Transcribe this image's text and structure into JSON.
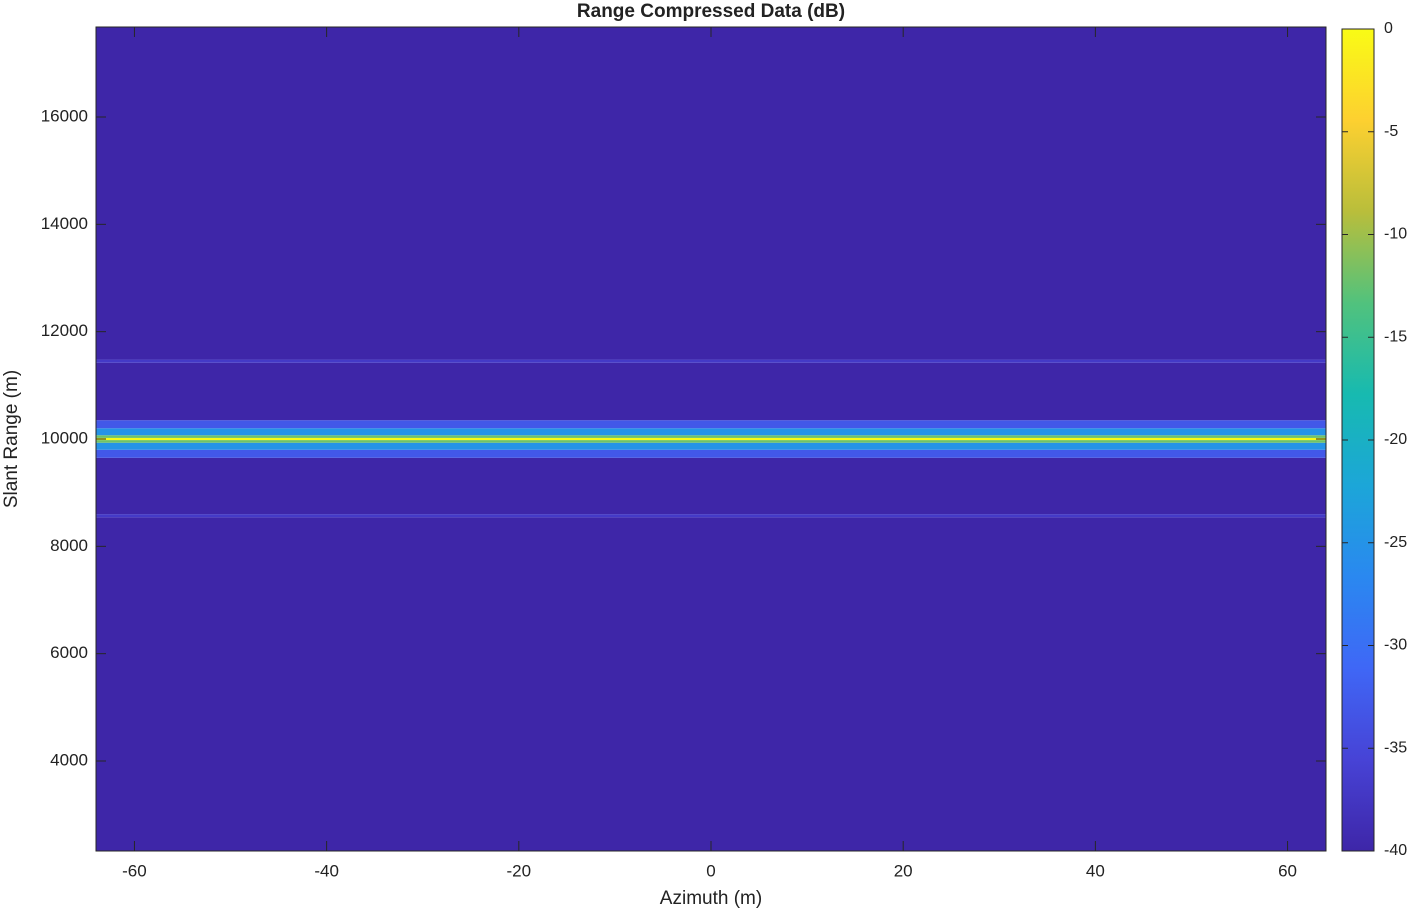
{
  "chart_data": {
    "type": "heatmap",
    "title": "Range Compressed Data (dB)",
    "x_label": "Azimuth (m)",
    "y_label": "Slant Range (m)",
    "xlim": [
      -64,
      64
    ],
    "xticks": [
      -60,
      -40,
      -20,
      0,
      20,
      40,
      60
    ],
    "ylim": [
      2323,
      17677
    ],
    "yticks": [
      4000,
      6000,
      8000,
      10000,
      12000,
      14000,
      16000
    ],
    "y_edges": [
      2323,
      8540,
      8600,
      9650,
      9800,
      9930,
      9980,
      10020,
      10070,
      10200,
      10350,
      11420,
      11480,
      17677
    ],
    "values": [
      -40,
      -37,
      -40,
      -33,
      -25,
      -12,
      0,
      -12,
      -25,
      -33,
      -40,
      -37,
      -40
    ],
    "clim": [
      -40,
      0
    ],
    "cticks": [
      -40,
      -35,
      -30,
      -25,
      -20,
      -15,
      -10,
      -5,
      0
    ],
    "colormap": [
      "#3e26a8",
      "#4743d6",
      "#3f67f6",
      "#2a88f0",
      "#1ca6d8",
      "#17bab0",
      "#51c27d",
      "#b9be3b",
      "#fdd030",
      "#f9fb15"
    ]
  }
}
